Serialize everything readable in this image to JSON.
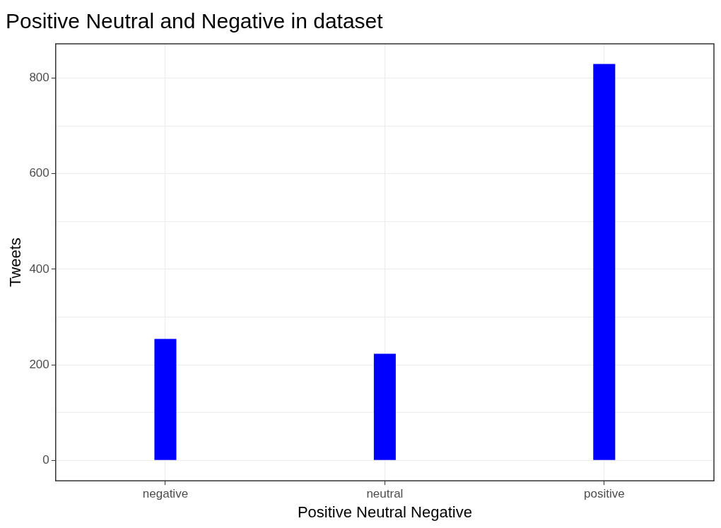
{
  "chart_data": {
    "type": "bar",
    "title": "Positive Neutral and Negative in dataset",
    "xlabel": "Positive Neutral Negative",
    "ylabel": "Tweets",
    "categories": [
      "negative",
      "neutral",
      "positive"
    ],
    "values": [
      254,
      223,
      830
    ],
    "color": "#0000ff",
    "ylim": [
      -43,
      872
    ],
    "yticks": [
      0,
      {
        "value": 100,
        "label": null
      },
      200,
      {
        "value": 300,
        "label": null
      },
      400,
      {
        "value": 500,
        "label": null
      },
      600,
      {
        "value": 700,
        "label": null
      },
      800
    ],
    "grid": true
  }
}
